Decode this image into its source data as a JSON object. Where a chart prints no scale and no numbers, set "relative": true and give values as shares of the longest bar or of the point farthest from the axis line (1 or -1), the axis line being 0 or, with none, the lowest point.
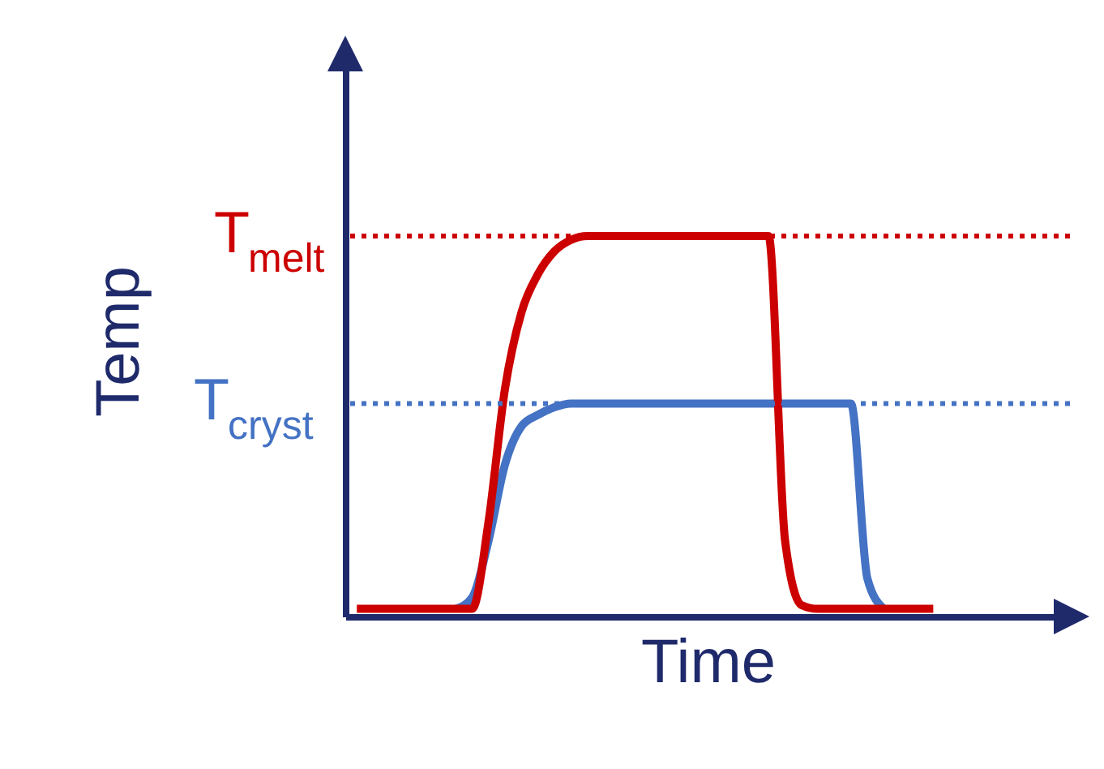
{
  "chart_data": {
    "type": "line",
    "relative": true,
    "xlabel": "Time",
    "ylabel": "Temp",
    "line_style": "solid",
    "marker": "none",
    "categories": [
      null,
      null,
      null,
      null,
      null,
      null,
      null,
      null,
      null,
      null,
      null,
      null,
      null,
      null,
      null,
      null,
      null,
      null,
      null,
      null,
      null,
      null,
      null,
      null,
      null,
      null,
      null,
      null,
      null,
      null,
      null,
      null,
      null,
      null,
      null,
      null,
      null,
      null,
      null,
      null,
      null,
      null,
      null,
      null
    ],
    "series": [
      {
        "color": "#4472c4",
        "values": [
          null,
          null,
          null,
          null,
          null,
          null,
          0.02,
          0.05,
          0.2,
          0.4,
          0.5,
          0.53,
          0.55,
          0.56,
          0.56,
          0.56,
          0.56,
          0.56,
          0.56,
          0.56,
          0.56,
          0.56,
          0.56,
          0.56,
          0.56,
          0.56,
          0.56,
          0.56,
          0.56,
          0.56,
          0.56,
          0.1,
          0.02,
          null,
          null,
          null,
          null,
          null,
          null,
          null,
          null,
          null,
          null,
          null
        ]
      },
      {
        "color": "#cc0000",
        "values": [
          0.02,
          0.02,
          0.02,
          0.02,
          0.02,
          0.02,
          0.02,
          0.02,
          0.25,
          0.6,
          0.8,
          0.9,
          0.96,
          0.99,
          1,
          1,
          1,
          1,
          1,
          1,
          1,
          1,
          1,
          1,
          1,
          1,
          0.2,
          0.03,
          0.02,
          0.02,
          0.02,
          0.02,
          0.02,
          0.02,
          0.02,
          0.02,
          null,
          null,
          null,
          null,
          null,
          null,
          null,
          null
        ]
      }
    ],
    "ref_lines": [
      {
        "axis": "y",
        "value": 1,
        "label": "T$_{melt}$",
        "color": "#cc0000",
        "line_style": "dotted"
      },
      {
        "axis": "y",
        "value": 0.56,
        "label": "T$_{cryst}$",
        "color": "#4472c4",
        "line_style": "dotted"
      }
    ]
  }
}
